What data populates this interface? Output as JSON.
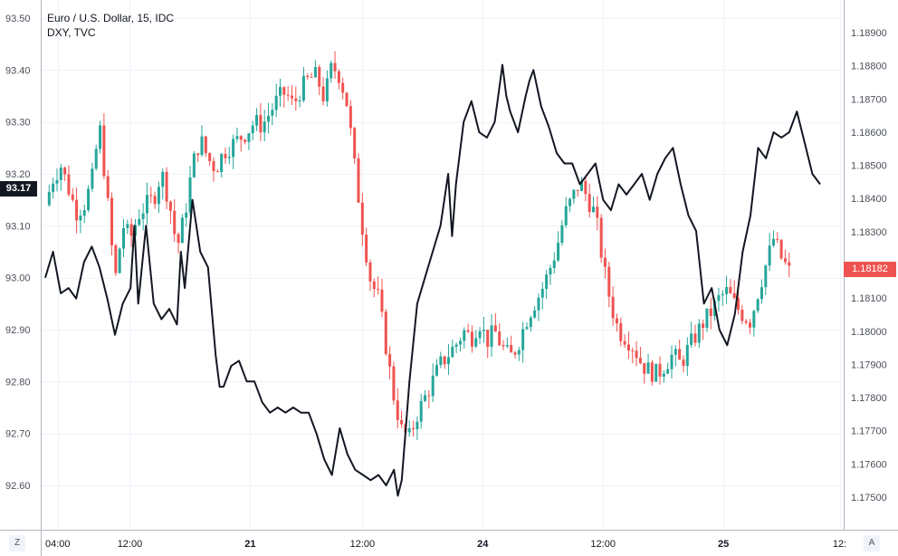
{
  "legend": {
    "main_series": "Euro / U.S. Dollar, 15, IDC",
    "overlay_series": "DXY, TVC"
  },
  "badges": {
    "left_value": "93.17",
    "right_value": "1.18182"
  },
  "buttons": {
    "left_axis_toggle": "Z",
    "right_axis_toggle": "A"
  },
  "colors": {
    "up": "#26a69a",
    "down": "#ef5350",
    "overlay": "#131722",
    "grid": "#f0f3fa"
  },
  "chart_data": {
    "type": "line",
    "left_axis": {
      "series": "DXY, TVC",
      "ylim": [
        92.55,
        93.51
      ],
      "ticks": [
        "93.50",
        "93.40",
        "93.30",
        "93.20",
        "93.10",
        "93.00",
        "92.90",
        "92.80",
        "92.70",
        "92.60"
      ]
    },
    "right_axis": {
      "series": "Euro / U.S. Dollar, 15, IDC",
      "ylim": [
        1.1745,
        1.1901
      ],
      "ticks": [
        "1.18900",
        "1.18800",
        "1.18700",
        "1.18600",
        "1.18500",
        "1.18400",
        "1.18300",
        "1.18100",
        "1.18000",
        "1.17900",
        "1.17800",
        "1.17700",
        "1.17600",
        "1.17500"
      ]
    },
    "x_ticks": [
      {
        "label": "04:00",
        "bold": false,
        "pos": 0.02
      },
      {
        "label": "12:00",
        "bold": false,
        "pos": 0.11
      },
      {
        "label": "21",
        "bold": true,
        "pos": 0.26
      },
      {
        "label": "12:00",
        "bold": false,
        "pos": 0.4
      },
      {
        "label": "24",
        "bold": true,
        "pos": 0.55
      },
      {
        "label": "12:00",
        "bold": false,
        "pos": 0.7
      },
      {
        "label": "25",
        "bold": true,
        "pos": 0.85
      },
      {
        "label": "12:",
        "bold": false,
        "pos": 0.995
      }
    ],
    "grid": true,
    "dxy_series": [
      [
        0.0,
        93.0
      ],
      [
        0.01,
        93.05
      ],
      [
        0.02,
        92.97
      ],
      [
        0.03,
        92.98
      ],
      [
        0.04,
        92.96
      ],
      [
        0.05,
        93.03
      ],
      [
        0.06,
        93.06
      ],
      [
        0.07,
        93.02
      ],
      [
        0.08,
        92.96
      ],
      [
        0.09,
        92.89
      ],
      [
        0.1,
        92.95
      ],
      [
        0.11,
        92.98
      ],
      [
        0.115,
        93.1
      ],
      [
        0.12,
        92.95
      ],
      [
        0.13,
        93.1
      ],
      [
        0.14,
        92.95
      ],
      [
        0.15,
        92.92
      ],
      [
        0.16,
        92.94
      ],
      [
        0.17,
        92.91
      ],
      [
        0.175,
        93.05
      ],
      [
        0.18,
        92.98
      ],
      [
        0.19,
        93.15
      ],
      [
        0.2,
        93.05
      ],
      [
        0.21,
        93.02
      ],
      [
        0.22,
        92.85
      ],
      [
        0.225,
        92.79
      ],
      [
        0.23,
        92.79
      ],
      [
        0.24,
        92.83
      ],
      [
        0.25,
        92.84
      ],
      [
        0.26,
        92.8
      ],
      [
        0.27,
        92.8
      ],
      [
        0.28,
        92.76
      ],
      [
        0.29,
        92.74
      ],
      [
        0.3,
        92.75
      ],
      [
        0.31,
        92.74
      ],
      [
        0.32,
        92.75
      ],
      [
        0.33,
        92.74
      ],
      [
        0.34,
        92.74
      ],
      [
        0.35,
        92.7
      ],
      [
        0.36,
        92.65
      ],
      [
        0.37,
        92.62
      ],
      [
        0.38,
        92.71
      ],
      [
        0.39,
        92.66
      ],
      [
        0.4,
        92.63
      ],
      [
        0.41,
        92.62
      ],
      [
        0.42,
        92.61
      ],
      [
        0.43,
        92.62
      ],
      [
        0.44,
        92.6
      ],
      [
        0.45,
        92.63
      ],
      [
        0.455,
        92.58
      ],
      [
        0.46,
        92.61
      ],
      [
        0.47,
        92.8
      ],
      [
        0.48,
        92.95
      ],
      [
        0.49,
        93.0
      ],
      [
        0.5,
        93.05
      ],
      [
        0.51,
        93.1
      ],
      [
        0.52,
        93.2
      ],
      [
        0.525,
        93.08
      ],
      [
        0.53,
        93.18
      ],
      [
        0.54,
        93.3
      ],
      [
        0.55,
        93.34
      ],
      [
        0.56,
        93.28
      ],
      [
        0.57,
        93.27
      ],
      [
        0.58,
        93.3
      ],
      [
        0.59,
        93.41
      ],
      [
        0.595,
        93.35
      ],
      [
        0.6,
        93.32
      ],
      [
        0.61,
        93.28
      ],
      [
        0.62,
        93.35
      ],
      [
        0.625,
        93.38
      ],
      [
        0.63,
        93.4
      ],
      [
        0.64,
        93.33
      ],
      [
        0.65,
        93.29
      ],
      [
        0.66,
        93.24
      ],
      [
        0.67,
        93.22
      ],
      [
        0.68,
        93.22
      ],
      [
        0.69,
        93.18
      ],
      [
        0.7,
        93.2
      ],
      [
        0.71,
        93.22
      ],
      [
        0.72,
        93.15
      ],
      [
        0.73,
        93.13
      ],
      [
        0.74,
        93.18
      ],
      [
        0.75,
        93.16
      ],
      [
        0.76,
        93.18
      ],
      [
        0.77,
        93.2
      ],
      [
        0.78,
        93.15
      ],
      [
        0.79,
        93.2
      ],
      [
        0.8,
        93.23
      ],
      [
        0.81,
        93.25
      ],
      [
        0.82,
        93.18
      ],
      [
        0.83,
        93.12
      ],
      [
        0.84,
        93.09
      ],
      [
        0.85,
        92.95
      ],
      [
        0.86,
        92.98
      ],
      [
        0.87,
        92.9
      ],
      [
        0.88,
        92.87
      ],
      [
        0.89,
        92.93
      ],
      [
        0.9,
        93.05
      ],
      [
        0.91,
        93.12
      ],
      [
        0.92,
        93.25
      ],
      [
        0.93,
        93.23
      ],
      [
        0.94,
        93.28
      ],
      [
        0.95,
        93.27
      ],
      [
        0.96,
        93.28
      ],
      [
        0.97,
        93.32
      ],
      [
        0.98,
        93.26
      ],
      [
        0.99,
        93.2
      ],
      [
        1.0,
        93.18
      ]
    ],
    "eurusd_series": [
      [
        0.0,
        1.1838
      ],
      [
        0.01,
        1.1846
      ],
      [
        0.02,
        1.185
      ],
      [
        0.03,
        1.1843
      ],
      [
        0.04,
        1.1836
      ],
      [
        0.05,
        1.1838
      ],
      [
        0.06,
        1.1845
      ],
      [
        0.07,
        1.1862
      ],
      [
        0.08,
        1.184
      ],
      [
        0.09,
        1.1815
      ],
      [
        0.1,
        1.1832
      ],
      [
        0.11,
        1.1828
      ],
      [
        0.12,
        1.1835
      ],
      [
        0.13,
        1.1838
      ],
      [
        0.14,
        1.184
      ],
      [
        0.15,
        1.1848
      ],
      [
        0.16,
        1.1839
      ],
      [
        0.17,
        1.1825
      ],
      [
        0.18,
        1.1835
      ],
      [
        0.19,
        1.185
      ],
      [
        0.2,
        1.1858
      ],
      [
        0.21,
        1.1852
      ],
      [
        0.22,
        1.1849
      ],
      [
        0.23,
        1.1854
      ],
      [
        0.24,
        1.1856
      ],
      [
        0.25,
        1.1858
      ],
      [
        0.26,
        1.186
      ],
      [
        0.27,
        1.1863
      ],
      [
        0.28,
        1.1862
      ],
      [
        0.29,
        1.1866
      ],
      [
        0.3,
        1.187
      ],
      [
        0.31,
        1.1872
      ],
      [
        0.32,
        1.1868
      ],
      [
        0.33,
        1.1873
      ],
      [
        0.34,
        1.1876
      ],
      [
        0.35,
        1.1877
      ],
      [
        0.36,
        1.187
      ],
      [
        0.37,
        1.188
      ],
      [
        0.38,
        1.1877
      ],
      [
        0.39,
        1.1868
      ],
      [
        0.4,
        1.1848
      ],
      [
        0.41,
        1.183
      ],
      [
        0.42,
        1.1815
      ],
      [
        0.43,
        1.181
      ],
      [
        0.44,
        1.1795
      ],
      [
        0.45,
        1.178
      ],
      [
        0.46,
        1.177
      ],
      [
        0.47,
        1.1768
      ],
      [
        0.48,
        1.1775
      ],
      [
        0.49,
        1.178
      ],
      [
        0.5,
        1.1785
      ],
      [
        0.51,
        1.179
      ],
      [
        0.52,
        1.1793
      ],
      [
        0.53,
        1.1796
      ],
      [
        0.54,
        1.18
      ],
      [
        0.55,
        1.1798
      ],
      [
        0.56,
        1.1803
      ],
      [
        0.57,
        1.1797
      ],
      [
        0.58,
        1.18
      ],
      [
        0.59,
        1.1795
      ],
      [
        0.6,
        1.1792
      ],
      [
        0.61,
        1.1796
      ],
      [
        0.62,
        1.1803
      ],
      [
        0.63,
        1.1808
      ],
      [
        0.64,
        1.1812
      ],
      [
        0.65,
        1.1818
      ],
      [
        0.66,
        1.1825
      ],
      [
        0.67,
        1.1835
      ],
      [
        0.68,
        1.184
      ],
      [
        0.69,
        1.1845
      ],
      [
        0.7,
        1.184
      ],
      [
        0.71,
        1.1835
      ],
      [
        0.72,
        1.182
      ],
      [
        0.73,
        1.1808
      ],
      [
        0.74,
        1.18
      ],
      [
        0.75,
        1.1798
      ],
      [
        0.76,
        1.1795
      ],
      [
        0.77,
        1.179
      ],
      [
        0.78,
        1.1788
      ],
      [
        0.79,
        1.1787
      ],
      [
        0.8,
        1.179
      ],
      [
        0.81,
        1.1793
      ],
      [
        0.82,
        1.179
      ],
      [
        0.83,
        1.1795
      ],
      [
        0.84,
        1.1799
      ],
      [
        0.85,
        1.1803
      ],
      [
        0.86,
        1.1806
      ],
      [
        0.87,
        1.181
      ],
      [
        0.88,
        1.1812
      ],
      [
        0.89,
        1.1808
      ],
      [
        0.9,
        1.1805
      ],
      [
        0.91,
        1.1803
      ],
      [
        0.92,
        1.1812
      ],
      [
        0.93,
        1.182
      ],
      [
        0.94,
        1.1828
      ],
      [
        0.95,
        1.1822
      ],
      [
        0.96,
        1.1818
      ]
    ]
  }
}
